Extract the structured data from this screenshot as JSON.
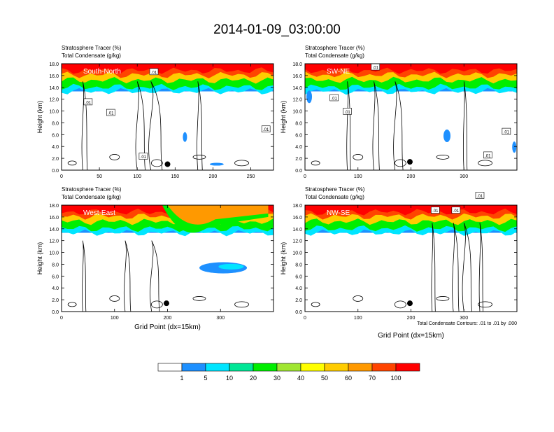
{
  "figure": {
    "title": "2014-01-09_03:00:00",
    "contour_note": "Total Condensate Contours: .01 to .01 by .000"
  },
  "palette": [
    "#ffffff",
    "#1e90ff",
    "#00e5ff",
    "#00e696",
    "#00ee00",
    "#a0e632",
    "#ffff00",
    "#ffcc00",
    "#ff9900",
    "#ff4400",
    "#ff0000"
  ],
  "colorbar": {
    "labels": [
      "1",
      "5",
      "10",
      "20",
      "30",
      "40",
      "50",
      "60",
      "70",
      "100"
    ]
  },
  "chart_data": [
    {
      "type": "heatmap",
      "title_lines": [
        "Stratosphere Tracer   (%)",
        "Total Condensate   (g/kg)"
      ],
      "panel_label": "South-North",
      "ylabel": "Height (km)",
      "xlabel": "",
      "xlim": [
        0,
        280
      ],
      "ylim": [
        0,
        18
      ],
      "xticks": [
        "0",
        "50",
        "100",
        "150",
        "200",
        "250"
      ],
      "xtick_values": [
        0,
        50,
        100,
        150,
        200,
        250
      ],
      "yticks": [
        "0.0",
        "2.0",
        "4.0",
        "6.0",
        "8.0",
        "10.0",
        "12.0",
        "14.0",
        "16.0",
        "18.0"
      ],
      "marker": {
        "x": 140,
        "y": 1.0
      },
      "contour_labels": [
        {
          "text": ".01",
          "x": 122,
          "y": 16.6
        },
        {
          "text": ".01",
          "x": 35,
          "y": 11.5
        },
        {
          "text": ".01",
          "x": 65,
          "y": 9.7
        },
        {
          "text": ".01",
          "x": 270,
          "y": 6.9
        },
        {
          "text": ".01",
          "x": 108,
          "y": 2.3
        }
      ]
    },
    {
      "type": "heatmap",
      "title_lines": [
        "Stratosphere Tracer   (%)",
        "Total Condensate   (g/kg)"
      ],
      "panel_label": "SW-NE",
      "ylabel": "Height (km)",
      "xlabel": "",
      "xlim": [
        0,
        400
      ],
      "ylim": [
        0,
        18
      ],
      "xticks": [
        "0",
        "100",
        "200",
        "300"
      ],
      "xtick_values": [
        0,
        100,
        200,
        300
      ],
      "yticks": [
        "0.0",
        "2.0",
        "4.0",
        "6.0",
        "8.0",
        "10.0",
        "12.0",
        "14.0",
        "16.0",
        "18.0"
      ],
      "marker": {
        "x": 198,
        "y": 1.4
      },
      "contour_labels": [
        {
          "text": ".01",
          "x": 133,
          "y": 17.4
        },
        {
          "text": ".01",
          "x": 55,
          "y": 12.2
        },
        {
          "text": ".01",
          "x": 80,
          "y": 9.9
        },
        {
          "text": ".01",
          "x": 380,
          "y": 6.5
        },
        {
          "text": ".01",
          "x": 345,
          "y": 2.5
        }
      ]
    },
    {
      "type": "heatmap",
      "title_lines": [
        "Stratosphere Tracer   (%)",
        "Total Condensate   (g/kg)"
      ],
      "panel_label": "West-East",
      "ylabel": "Height (km)",
      "xlabel": "Grid Point (dx=15km)",
      "xlim": [
        0,
        400
      ],
      "ylim": [
        0,
        18
      ],
      "xticks": [
        "0",
        "100",
        "200",
        "300"
      ],
      "xtick_values": [
        0,
        100,
        200,
        300
      ],
      "yticks": [
        "0.0",
        "2.0",
        "4.0",
        "6.0",
        "8.0",
        "10.0",
        "12.0",
        "14.0",
        "16.0",
        "18.0"
      ],
      "marker": {
        "x": 198,
        "y": 1.4
      },
      "contour_labels": []
    },
    {
      "type": "heatmap",
      "title_lines": [
        "Stratosphere Tracer   (%)",
        "Total Condensate   (g/kg)"
      ],
      "panel_label": "NW-SE",
      "ylabel": "Height (km)",
      "xlabel": "Grid Point (dx=15km)",
      "xlim": [
        0,
        400
      ],
      "ylim": [
        0,
        18
      ],
      "xticks": [
        "0",
        "100",
        "200",
        "300"
      ],
      "xtick_values": [
        0,
        100,
        200,
        300
      ],
      "yticks": [
        "0.0",
        "2.0",
        "4.0",
        "6.0",
        "8.0",
        "10.0",
        "12.0",
        "14.0",
        "16.0",
        "18.0"
      ],
      "marker": {
        "x": 198,
        "y": 1.4
      },
      "contour_labels": [
        {
          "text": ".01",
          "x": 330,
          "y": 19.6
        },
        {
          "text": ".01",
          "x": 246,
          "y": 17.1
        },
        {
          "text": ".01",
          "x": 285,
          "y": 17.1
        }
      ]
    }
  ]
}
